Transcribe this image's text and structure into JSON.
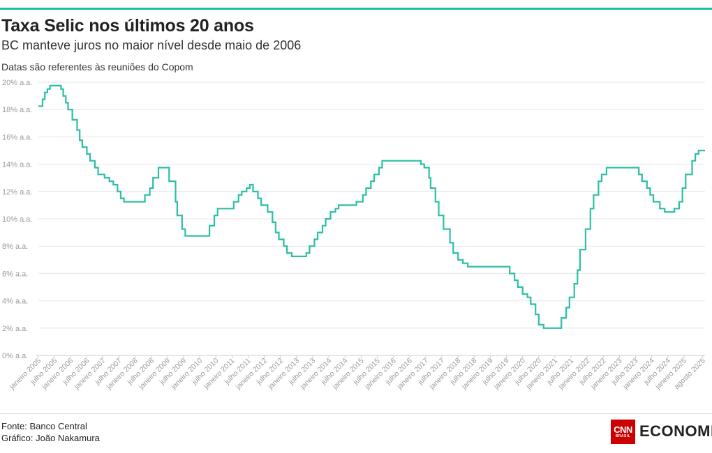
{
  "header": {
    "title": "Taxa Selic nos últimos 20 anos",
    "subtitle": "BC manteve juros no maior nível desde maio de 2006",
    "note": "Datas são referentes às reuniões do Copom"
  },
  "footer": {
    "source": "Fonte: Banco Central",
    "credit": "Gráfico: João Nakamura",
    "logo_main": "CNN",
    "logo_sub": "BRASIL",
    "logo_section": "ECONOMIA"
  },
  "colors": {
    "accent": "#1cbfa3",
    "line": "#2bbfa4",
    "grid": "#e6e6e6",
    "axis_text": "#9a9a9a",
    "cnn_red": "#cc0000"
  },
  "chart_data": {
    "type": "line",
    "title": "Taxa Selic nos últimos 20 anos",
    "x_range": [
      2005.0,
      2025.65
    ],
    "ylim": [
      0,
      20
    ],
    "y_tick_values": [
      0,
      2,
      4,
      6,
      8,
      10,
      12,
      14,
      16,
      18,
      20
    ],
    "y_tick_labels": [
      "0% a.a.",
      "2% a.a.",
      "4% a.a.",
      "6% a.a.",
      "8% a.a.",
      "10% a.a.",
      "12% a.a.",
      "14% a.a.",
      "16% a.a.",
      "18% a.a.",
      "20% a.a."
    ],
    "x_tick_values": [
      2005.0,
      2005.5,
      2006.0,
      2006.5,
      2007.0,
      2007.5,
      2008.0,
      2008.5,
      2009.0,
      2009.5,
      2010.0,
      2010.5,
      2011.0,
      2011.5,
      2012.0,
      2012.5,
      2013.0,
      2013.5,
      2014.0,
      2014.5,
      2015.0,
      2015.5,
      2016.0,
      2016.5,
      2017.0,
      2017.5,
      2018.0,
      2018.5,
      2019.0,
      2019.5,
      2020.0,
      2020.5,
      2021.0,
      2021.5,
      2022.0,
      2022.5,
      2023.0,
      2023.5,
      2024.0,
      2024.5,
      2025.0,
      2025.58
    ],
    "x_tick_labels": [
      "janeiro 2005",
      "julho 2005",
      "janeiro 2006",
      "julho 2006",
      "janeiro 2007",
      "julho 2007",
      "janeiro 2008",
      "julho 2008",
      "janeiro 2009",
      "julho 2009",
      "janeiro 2010",
      "julho 2010",
      "janeiro 2011",
      "julho 2011",
      "janeiro 2012",
      "julho 2012",
      "janeiro 2013",
      "julho 2013",
      "janeiro 2014",
      "julho 2014",
      "janeiro 2015",
      "julho 2015",
      "janeiro 2016",
      "julho 2016",
      "janeiro 2017",
      "julho 2017",
      "janeiro 2018",
      "julho 2018",
      "janeiro 2019",
      "julho 2019",
      "janeiro 2020",
      "julho 2020",
      "janeiro 2021",
      "julho 2021",
      "janeiro 2022",
      "julho 2022",
      "janeiro 2023",
      "julho 2023",
      "janeiro 2024",
      "julho 2024",
      "janeiro 2025",
      "agosto 2025"
    ],
    "grid": true,
    "series": [
      {
        "step": true,
        "points": [
          [
            2005.0,
            18.25
          ],
          [
            2005.13,
            18.75
          ],
          [
            2005.2,
            19.25
          ],
          [
            2005.28,
            19.5
          ],
          [
            2005.36,
            19.75
          ],
          [
            2005.7,
            19.5
          ],
          [
            2005.77,
            19.0
          ],
          [
            2005.85,
            18.5
          ],
          [
            2005.92,
            18.0
          ],
          [
            2006.05,
            17.25
          ],
          [
            2006.2,
            16.5
          ],
          [
            2006.28,
            15.75
          ],
          [
            2006.36,
            15.25
          ],
          [
            2006.5,
            14.75
          ],
          [
            2006.6,
            14.25
          ],
          [
            2006.75,
            13.75
          ],
          [
            2006.85,
            13.25
          ],
          [
            2007.05,
            13.0
          ],
          [
            2007.2,
            12.75
          ],
          [
            2007.32,
            12.5
          ],
          [
            2007.45,
            12.0
          ],
          [
            2007.55,
            11.5
          ],
          [
            2007.65,
            11.25
          ],
          [
            2008.3,
            11.75
          ],
          [
            2008.45,
            12.25
          ],
          [
            2008.55,
            13.0
          ],
          [
            2008.72,
            13.75
          ],
          [
            2009.05,
            12.75
          ],
          [
            2009.25,
            11.25
          ],
          [
            2009.3,
            10.25
          ],
          [
            2009.45,
            9.25
          ],
          [
            2009.55,
            8.75
          ],
          [
            2010.3,
            9.5
          ],
          [
            2010.45,
            10.25
          ],
          [
            2010.55,
            10.75
          ],
          [
            2011.05,
            11.25
          ],
          [
            2011.2,
            11.75
          ],
          [
            2011.3,
            12.0
          ],
          [
            2011.45,
            12.25
          ],
          [
            2011.55,
            12.5
          ],
          [
            2011.65,
            12.0
          ],
          [
            2011.8,
            11.5
          ],
          [
            2011.9,
            11.0
          ],
          [
            2012.1,
            10.5
          ],
          [
            2012.25,
            9.75
          ],
          [
            2012.35,
            9.0
          ],
          [
            2012.45,
            8.5
          ],
          [
            2012.6,
            8.0
          ],
          [
            2012.7,
            7.5
          ],
          [
            2012.85,
            7.25
          ],
          [
            2013.3,
            7.5
          ],
          [
            2013.4,
            8.0
          ],
          [
            2013.55,
            8.5
          ],
          [
            2013.65,
            9.0
          ],
          [
            2013.8,
            9.5
          ],
          [
            2013.9,
            10.0
          ],
          [
            2014.05,
            10.5
          ],
          [
            2014.2,
            10.75
          ],
          [
            2014.3,
            11.0
          ],
          [
            2014.85,
            11.25
          ],
          [
            2015.05,
            11.75
          ],
          [
            2015.15,
            12.25
          ],
          [
            2015.3,
            12.75
          ],
          [
            2015.4,
            13.25
          ],
          [
            2015.55,
            13.75
          ],
          [
            2015.65,
            14.25
          ],
          [
            2016.85,
            14.0
          ],
          [
            2016.95,
            13.75
          ],
          [
            2017.1,
            13.0
          ],
          [
            2017.15,
            12.25
          ],
          [
            2017.3,
            11.25
          ],
          [
            2017.4,
            10.25
          ],
          [
            2017.55,
            9.25
          ],
          [
            2017.75,
            8.25
          ],
          [
            2017.85,
            7.5
          ],
          [
            2018.0,
            7.0
          ],
          [
            2018.15,
            6.75
          ],
          [
            2018.3,
            6.5
          ],
          [
            2019.6,
            6.0
          ],
          [
            2019.75,
            5.5
          ],
          [
            2019.85,
            5.0
          ],
          [
            2020.0,
            4.5
          ],
          [
            2020.15,
            4.25
          ],
          [
            2020.25,
            3.75
          ],
          [
            2020.4,
            3.0
          ],
          [
            2020.5,
            2.25
          ],
          [
            2020.65,
            2.0
          ],
          [
            2021.2,
            2.75
          ],
          [
            2021.35,
            3.5
          ],
          [
            2021.45,
            4.25
          ],
          [
            2021.6,
            5.25
          ],
          [
            2021.7,
            6.25
          ],
          [
            2021.78,
            7.75
          ],
          [
            2021.95,
            9.25
          ],
          [
            2022.1,
            10.75
          ],
          [
            2022.2,
            11.75
          ],
          [
            2022.35,
            12.75
          ],
          [
            2022.45,
            13.25
          ],
          [
            2022.6,
            13.75
          ],
          [
            2023.6,
            13.25
          ],
          [
            2023.7,
            12.75
          ],
          [
            2023.85,
            12.25
          ],
          [
            2023.95,
            11.75
          ],
          [
            2024.05,
            11.25
          ],
          [
            2024.25,
            10.75
          ],
          [
            2024.4,
            10.5
          ],
          [
            2024.7,
            10.75
          ],
          [
            2024.85,
            11.25
          ],
          [
            2024.95,
            12.25
          ],
          [
            2025.05,
            13.25
          ],
          [
            2025.25,
            14.25
          ],
          [
            2025.35,
            14.75
          ],
          [
            2025.45,
            15.0
          ],
          [
            2025.65,
            15.0
          ]
        ]
      }
    ]
  }
}
